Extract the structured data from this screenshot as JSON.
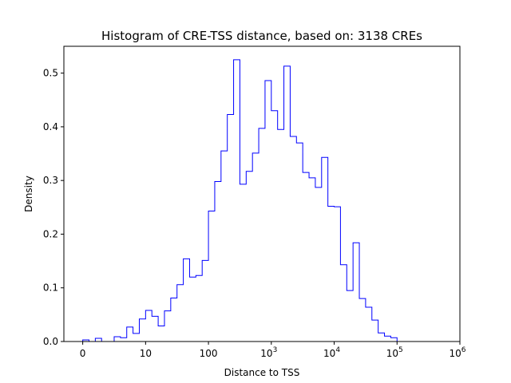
{
  "chart_data": {
    "type": "histogram",
    "title": "Histogram of CRE-TSS distance, based on: 3138 CREs",
    "xlabel": "Distance to TSS",
    "ylabel": "Density",
    "x_scale": "symlog",
    "xlim": [
      -0.3,
      6
    ],
    "ylim": [
      0,
      0.55
    ],
    "x_ticks": [
      {
        "v": 0,
        "base": "0",
        "exp": ""
      },
      {
        "v": 1,
        "base": "10",
        "exp": ""
      },
      {
        "v": 2,
        "base": "100",
        "exp": ""
      },
      {
        "v": 3,
        "base": "10",
        "exp": "3"
      },
      {
        "v": 4,
        "base": "10",
        "exp": "4"
      },
      {
        "v": 5,
        "base": "10",
        "exp": "5"
      },
      {
        "v": 6,
        "base": "10",
        "exp": "6"
      }
    ],
    "y_ticks": [
      "0.0",
      "0.1",
      "0.2",
      "0.3",
      "0.4",
      "0.5"
    ],
    "bin_width_decades": 0.1,
    "bin_edges_start_decades": 0,
    "densities": [
      0.003,
      0.0,
      0.006,
      0.0,
      0.0,
      0.009,
      0.007,
      0.027,
      0.015,
      0.042,
      0.058,
      0.047,
      0.029,
      0.057,
      0.081,
      0.106,
      0.154,
      0.12,
      0.123,
      0.151,
      0.243,
      0.298,
      0.355,
      0.423,
      0.525,
      0.293,
      0.317,
      0.351,
      0.397,
      0.486,
      0.43,
      0.395,
      0.513,
      0.382,
      0.37,
      0.315,
      0.305,
      0.287,
      0.343,
      0.252,
      0.251,
      0.143,
      0.095,
      0.184,
      0.08,
      0.064,
      0.04,
      0.016,
      0.01,
      0.007
    ],
    "line_color": "#0000ff",
    "grid": false,
    "legend": "none"
  }
}
